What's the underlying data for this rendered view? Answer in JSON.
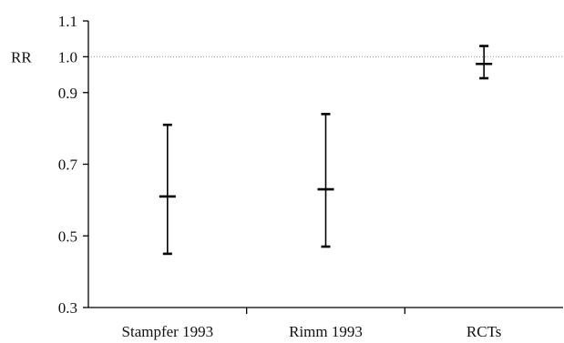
{
  "chart_data": {
    "type": "error-bar",
    "ylabel": "RR",
    "ylim": [
      0.3,
      1.1
    ],
    "yticks": [
      "0.3",
      "0.5",
      "0.7",
      "0.9",
      "1.0",
      "1.1"
    ],
    "reference_line": 1.0,
    "categories": [
      "Stampfer 1993",
      "Rimm 1993",
      "RCTs"
    ],
    "series": [
      {
        "estimate": [
          0.61,
          0.63,
          0.98
        ],
        "lower": [
          0.45,
          0.47,
          0.94
        ],
        "upper": [
          0.81,
          0.84,
          1.03
        ]
      }
    ],
    "grid": false,
    "legend": "none"
  }
}
